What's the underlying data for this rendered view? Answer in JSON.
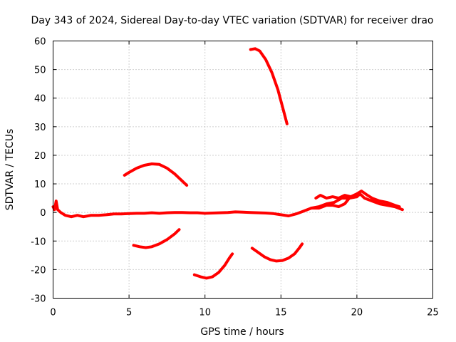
{
  "chart_data": {
    "type": "line",
    "title": "Day 343 of 2024, Sidereal Day-to-day VTEC variation (SDTVAR) for receiver drao",
    "xlabel": "GPS time / hours",
    "ylabel": "SDTVAR / TECUs",
    "xlim": [
      0,
      25
    ],
    "ylim": [
      -30,
      60
    ],
    "xticks": [
      0,
      5,
      10,
      15,
      20,
      25
    ],
    "yticks": [
      -30,
      -20,
      -10,
      0,
      10,
      20,
      30,
      40,
      50,
      60
    ],
    "grid": true,
    "color": "#ff0000",
    "series": [
      {
        "name": "main-track",
        "points": [
          [
            0.0,
            2
          ],
          [
            0.1,
            1
          ],
          [
            0.2,
            4
          ],
          [
            0.3,
            1
          ],
          [
            0.5,
            0
          ],
          [
            0.8,
            -1
          ],
          [
            1.2,
            -1.5
          ],
          [
            1.6,
            -1
          ],
          [
            2.0,
            -1.5
          ],
          [
            2.5,
            -1
          ],
          [
            3.0,
            -1
          ],
          [
            3.5,
            -0.8
          ],
          [
            4.0,
            -0.5
          ],
          [
            4.5,
            -0.5
          ],
          [
            5.0,
            -0.4
          ],
          [
            5.5,
            -0.3
          ],
          [
            6.0,
            -0.3
          ],
          [
            6.5,
            -0.1
          ],
          [
            7.0,
            -0.3
          ],
          [
            7.5,
            -0.1
          ],
          [
            8.0,
            0
          ],
          [
            8.5,
            0
          ],
          [
            9.0,
            -0.1
          ],
          [
            9.5,
            -0.1
          ],
          [
            10.0,
            -0.3
          ],
          [
            10.5,
            -0.2
          ],
          [
            11.0,
            -0.1
          ],
          [
            11.5,
            0
          ],
          [
            12.0,
            0.2
          ],
          [
            12.5,
            0.1
          ],
          [
            13.0,
            0
          ],
          [
            13.5,
            -0.1
          ],
          [
            14.0,
            -0.2
          ],
          [
            14.5,
            -0.4
          ],
          [
            15.0,
            -0.8
          ],
          [
            15.5,
            -1.2
          ],
          [
            16.0,
            -0.5
          ],
          [
            16.5,
            0.5
          ],
          [
            17.0,
            1.5
          ],
          [
            17.5,
            2
          ],
          [
            18.0,
            3
          ],
          [
            18.5,
            3.5
          ],
          [
            19.0,
            5
          ],
          [
            19.5,
            5
          ],
          [
            20.0,
            5.5
          ],
          [
            20.2,
            6.5
          ],
          [
            20.5,
            5
          ],
          [
            21.0,
            4
          ],
          [
            21.5,
            3
          ],
          [
            22.0,
            2.5
          ],
          [
            22.5,
            2
          ],
          [
            23.0,
            1
          ]
        ]
      },
      {
        "name": "upper-band",
        "points": [
          [
            17.3,
            5
          ],
          [
            17.6,
            6
          ],
          [
            18.0,
            5
          ],
          [
            18.4,
            5.5
          ],
          [
            18.8,
            5
          ],
          [
            19.2,
            6
          ],
          [
            19.6,
            5.5
          ],
          [
            20.0,
            6.5
          ],
          [
            20.3,
            7.5
          ],
          [
            20.7,
            6
          ],
          [
            21.0,
            5
          ],
          [
            21.5,
            4
          ],
          [
            22.0,
            3.5
          ],
          [
            22.5,
            2.5
          ],
          [
            22.8,
            2
          ]
        ]
      },
      {
        "name": "lower-band",
        "points": [
          [
            17.0,
            1.5
          ],
          [
            17.5,
            1.5
          ],
          [
            18.0,
            2.5
          ],
          [
            18.4,
            2.5
          ],
          [
            18.8,
            2
          ],
          [
            19.2,
            3
          ],
          [
            19.5,
            5
          ]
        ]
      },
      {
        "name": "arc-a",
        "points": [
          [
            4.7,
            13
          ],
          [
            5.0,
            14
          ],
          [
            5.5,
            15.5
          ],
          [
            6.0,
            16.5
          ],
          [
            6.5,
            17
          ],
          [
            7.0,
            16.8
          ],
          [
            7.5,
            15.5
          ],
          [
            8.0,
            13.5
          ],
          [
            8.5,
            11
          ],
          [
            8.8,
            9.5
          ]
        ]
      },
      {
        "name": "arc-b",
        "points": [
          [
            13.0,
            57
          ],
          [
            13.3,
            57.3
          ],
          [
            13.6,
            56.5
          ],
          [
            14.0,
            53.5
          ],
          [
            14.4,
            49
          ],
          [
            14.8,
            43
          ],
          [
            15.2,
            35
          ],
          [
            15.4,
            31
          ]
        ]
      },
      {
        "name": "arc-c",
        "points": [
          [
            5.3,
            -11.5
          ],
          [
            5.7,
            -12
          ],
          [
            6.1,
            -12.3
          ],
          [
            6.5,
            -12
          ],
          [
            7.0,
            -11
          ],
          [
            7.5,
            -9.5
          ],
          [
            8.0,
            -7.5
          ],
          [
            8.3,
            -6
          ]
        ]
      },
      {
        "name": "arc-d",
        "points": [
          [
            9.3,
            -21.8
          ],
          [
            9.7,
            -22.5
          ],
          [
            10.1,
            -23
          ],
          [
            10.5,
            -22.5
          ],
          [
            10.9,
            -21
          ],
          [
            11.3,
            -18.5
          ],
          [
            11.6,
            -16
          ],
          [
            11.8,
            -14.5
          ]
        ]
      },
      {
        "name": "arc-e",
        "points": [
          [
            13.1,
            -12.5
          ],
          [
            13.5,
            -14
          ],
          [
            13.9,
            -15.5
          ],
          [
            14.3,
            -16.5
          ],
          [
            14.7,
            -17
          ],
          [
            15.1,
            -16.8
          ],
          [
            15.5,
            -16
          ],
          [
            15.9,
            -14.5
          ],
          [
            16.2,
            -12.5
          ],
          [
            16.4,
            -11
          ]
        ]
      }
    ]
  }
}
